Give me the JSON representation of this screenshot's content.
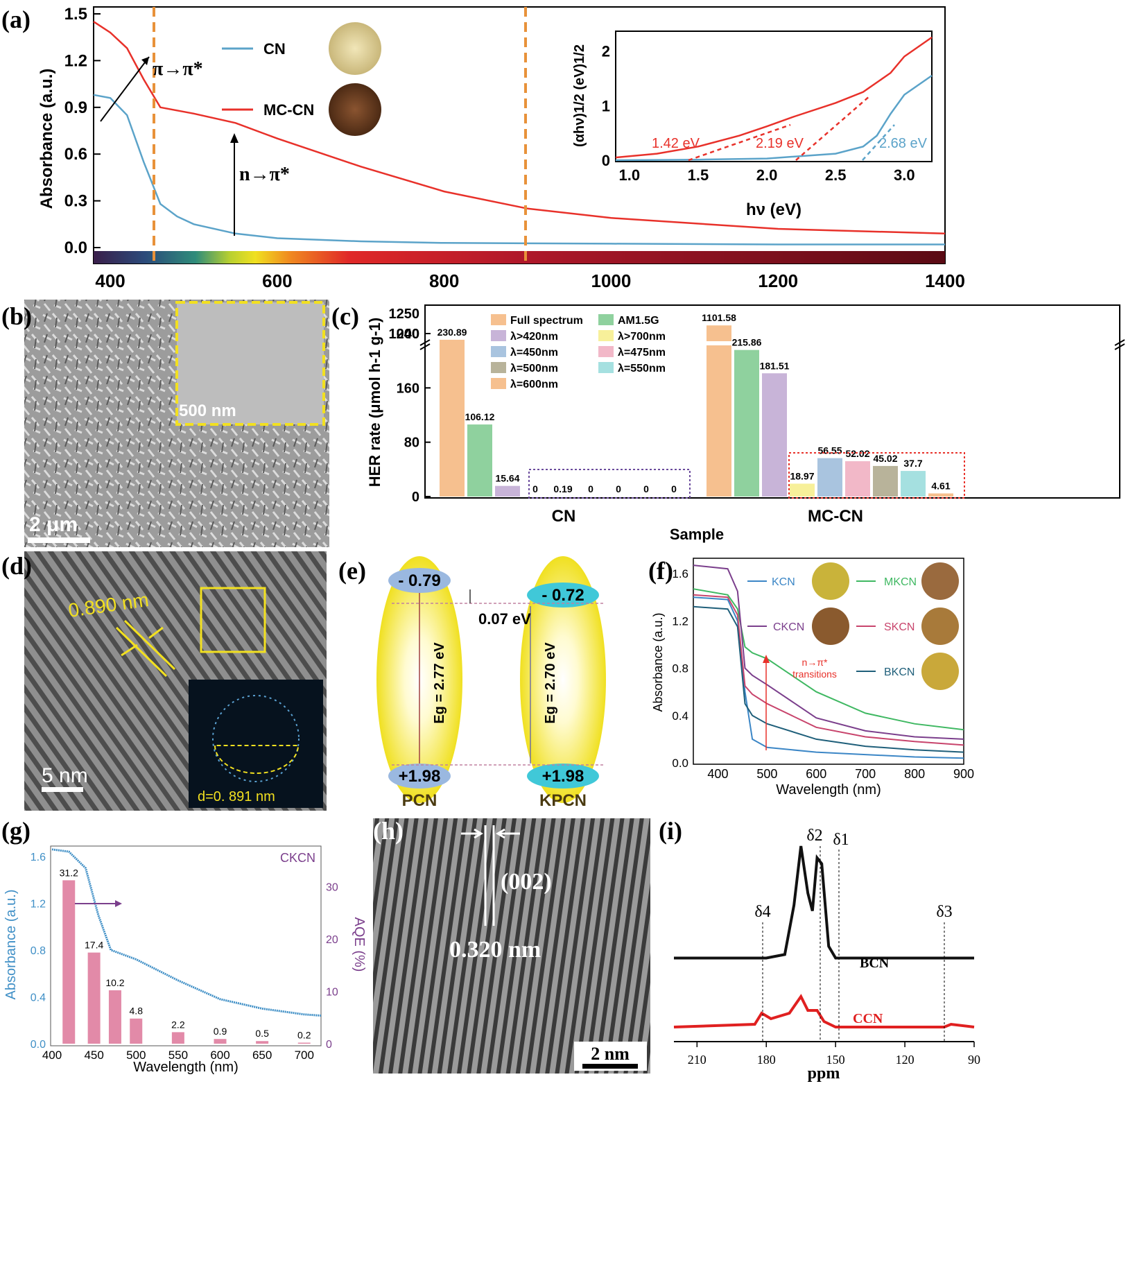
{
  "colors": {
    "cn": "#5ba3c9",
    "mccn": "#e8312a",
    "orange_dash": "#e8923a",
    "ckcn": "#7b3f8c",
    "kcn": "#3b86c6",
    "mkcn": "#3fb862",
    "skcn": "#c8446c",
    "bkcn": "#1f5f7a",
    "aqe_line": "#3f8fc6",
    "bcn": "#111111",
    "ccn": "#e02020"
  },
  "panels": {
    "a": "(a)",
    "b": "(b)",
    "c": "(c)",
    "d": "(d)",
    "e": "(e)",
    "f": "(f)",
    "g": "(g)",
    "h": "(h)",
    "i": "(i)"
  },
  "panel_a": {
    "ylabel": "Absorbance (a.u.)",
    "yticks": [
      "0.0",
      "0.3",
      "0.6",
      "0.9",
      "1.2",
      "1.5"
    ],
    "xticks": [
      "400",
      "600",
      "800",
      "1000",
      "1200",
      "1400"
    ],
    "legend_cn": "CN",
    "legend_mccn": "MC-CN",
    "ann_pi": "π→π*",
    "ann_n": "n→π*",
    "inset": {
      "ylabel": "(αhν)1/2 (eV)1/2",
      "xlabel": "hν (eV)",
      "xticks": [
        "1.0",
        "1.5",
        "2.0",
        "2.5",
        "3.0"
      ],
      "yticks": [
        "0",
        "1",
        "2"
      ],
      "e1": "1.42 eV",
      "e2": "2.19 eV",
      "e3": "2.68 eV"
    }
  },
  "panel_b": {
    "scale_main": "2 μm",
    "scale_inset": "500 nm"
  },
  "panel_c": {
    "ylabel": "HER rate (μmol h-1 g-1)",
    "xlabel": "Sample",
    "yticks_low": [
      "0",
      "80",
      "160",
      "240"
    ],
    "yticks_high": [
      "1000",
      "1250"
    ],
    "groups": [
      "CN",
      "MC-CN"
    ],
    "legend": [
      "Full spectrum",
      "AM1.5G",
      "λ>420nm",
      "λ>700nm",
      "λ=450nm",
      "λ=475nm",
      "λ=500nm",
      "λ=550nm",
      "λ=600nm"
    ],
    "legend_colors": [
      "#f6c08f",
      "#8fd19e",
      "#c8b4d8",
      "#f7f09a",
      "#a9c4df",
      "#f2b8c8",
      "#b8b39a",
      "#a5e0e0",
      "#f6c08f"
    ],
    "cn_values": [
      230.89,
      106.12,
      15.64,
      0,
      0.19,
      0,
      0,
      0,
      0
    ],
    "cn_labels": [
      "230.89",
      "106.12",
      "15.64",
      "0",
      "0.19",
      "0",
      "0",
      "0",
      "0"
    ],
    "mccn_values": [
      1101.58,
      215.86,
      181.51,
      18.97,
      56.55,
      52.02,
      45.02,
      37.7,
      4.61
    ],
    "mccn_labels": [
      "1101.58",
      "215.86",
      "181.51",
      "18.97",
      "56.55",
      "52.02",
      "45.02",
      "37.7",
      "4.61"
    ]
  },
  "panel_d": {
    "fringe": "0.890 nm",
    "scale": "5 nm",
    "fft": "d=0. 891 nm"
  },
  "panel_e": {
    "pcn_cb": "- 0.79",
    "pcn_vb": "+1.98",
    "pcn_eg": "Eg = 2.77 eV",
    "pcn_name": "PCN",
    "kpcn_cb": "- 0.72",
    "kpcn_vb": "+1.98",
    "kpcn_eg": "Eg = 2.70 eV",
    "kpcn_name": "KPCN",
    "delta": "0.07 eV"
  },
  "panel_f": {
    "ylabel": "Absorbance (a.u.)",
    "xlabel": "Wavelength (nm)",
    "yticks": [
      "0.0",
      "0.4",
      "0.8",
      "1.2",
      "1.6"
    ],
    "xticks": [
      "400",
      "500",
      "600",
      "700",
      "800",
      "900"
    ],
    "legend": [
      "KCN",
      "MKCN",
      "CKCN",
      "SKCN",
      "BKCN"
    ],
    "ann_1": "n→π*",
    "ann_2": "transitions"
  },
  "panel_g": {
    "ylabel_left": "Absorbance (a.u.)",
    "ylabel_right": "AQE (%)",
    "xlabel": "Wavelength (nm)",
    "series": "CKCN",
    "yticks_left": [
      "0.0",
      "0.4",
      "0.8",
      "1.2",
      "1.6"
    ],
    "yticks_right": [
      "0",
      "10",
      "20",
      "30"
    ],
    "xticks": [
      "400",
      "450",
      "500",
      "550",
      "600",
      "650",
      "700"
    ],
    "bar_x": [
      420,
      450,
      475,
      500,
      550,
      600,
      650,
      700
    ],
    "bar_values": [
      31.2,
      17.4,
      10.2,
      4.8,
      2.2,
      0.9,
      0.5,
      0.2
    ],
    "bar_labels": [
      "31.2",
      "17.4",
      "10.2",
      "4.8",
      "2.2",
      "0.9",
      "0.5",
      "0.2"
    ]
  },
  "panel_h": {
    "plane": "(002)",
    "spacing": "0.320 nm",
    "scale": "2 nm"
  },
  "panel_i": {
    "xlabel": "ppm",
    "xticks": [
      "210",
      "180",
      "150",
      "120",
      "90"
    ],
    "d1": "δ1",
    "d2": "δ2",
    "d3": "δ3",
    "d4": "δ4",
    "bcn": "BCN",
    "ccn": "CCN"
  },
  "chart_data": [
    {
      "type": "line",
      "xlabel": "",
      "ylabel": "Absorbance (a.u.)",
      "xlim": [
        380,
        1400
      ],
      "ylim": [
        -0.05,
        1.5
      ],
      "series": [
        {
          "name": "CN",
          "x": [
            380,
            400,
            420,
            440,
            460,
            480,
            500,
            550,
            600,
            700,
            800,
            1000,
            1200,
            1400
          ],
          "y": [
            0.98,
            0.96,
            0.85,
            0.55,
            0.28,
            0.2,
            0.15,
            0.09,
            0.06,
            0.04,
            0.03,
            0.025,
            0.02,
            0.02
          ]
        },
        {
          "name": "MC-CN",
          "x": [
            380,
            400,
            420,
            440,
            460,
            480,
            500,
            550,
            600,
            700,
            800,
            900,
            1000,
            1200,
            1400
          ],
          "y": [
            1.45,
            1.38,
            1.28,
            1.08,
            0.9,
            0.88,
            0.86,
            0.8,
            0.7,
            0.52,
            0.36,
            0.25,
            0.19,
            0.12,
            0.09
          ]
        }
      ]
    },
    {
      "type": "line",
      "xlabel": "hν (eV)",
      "ylabel": "(αhν)1/2 (eV)1/2",
      "xlim": [
        0.9,
        3.2
      ],
      "ylim": [
        0,
        2.3
      ],
      "series": [
        {
          "name": "CN",
          "x": [
            0.9,
            1.5,
            2.0,
            2.5,
            2.7,
            2.8,
            2.9,
            3.0,
            3.2
          ],
          "y": [
            0.0,
            0.01,
            0.03,
            0.12,
            0.25,
            0.45,
            0.85,
            1.2,
            1.55
          ]
        },
        {
          "name": "MC-CN",
          "x": [
            0.9,
            1.2,
            1.5,
            1.8,
            2.0,
            2.2,
            2.5,
            2.7,
            2.9,
            3.0,
            3.2
          ],
          "y": [
            0.05,
            0.12,
            0.25,
            0.45,
            0.62,
            0.8,
            1.05,
            1.25,
            1.6,
            1.9,
            2.25
          ]
        }
      ]
    },
    {
      "type": "bar",
      "ylabel": "HER rate (μmol h-1 g-1)",
      "xlabel": "Sample",
      "categories": [
        "CN",
        "MC-CN"
      ],
      "series": [
        {
          "name": "Full spectrum",
          "values": [
            230.89,
            1101.58
          ]
        },
        {
          "name": "AM1.5G",
          "values": [
            106.12,
            215.86
          ]
        },
        {
          "name": "λ>420nm",
          "values": [
            15.64,
            181.51
          ]
        },
        {
          "name": "λ>700nm",
          "values": [
            0,
            18.97
          ]
        },
        {
          "name": "λ=450nm",
          "values": [
            0.19,
            56.55
          ]
        },
        {
          "name": "λ=475nm",
          "values": [
            0,
            52.02
          ]
        },
        {
          "name": "λ=500nm",
          "values": [
            0,
            45.02
          ]
        },
        {
          "name": "λ=550nm",
          "values": [
            0,
            37.7
          ]
        },
        {
          "name": "λ=600nm",
          "values": [
            0,
            4.61
          ]
        }
      ]
    },
    {
      "type": "line",
      "xlabel": "Wavelength (nm)",
      "ylabel": "Absorbance (a.u.)",
      "xlim": [
        350,
        900
      ],
      "ylim": [
        0,
        1.7
      ],
      "series": [
        {
          "name": "KCN",
          "x": [
            350,
            420,
            440,
            455,
            470,
            500,
            600,
            700,
            800,
            900
          ],
          "y": [
            1.4,
            1.38,
            1.2,
            0.6,
            0.2,
            0.13,
            0.09,
            0.07,
            0.05,
            0.04
          ]
        },
        {
          "name": "MKCN",
          "x": [
            350,
            420,
            440,
            455,
            470,
            500,
            600,
            700,
            800,
            900
          ],
          "y": [
            1.47,
            1.42,
            1.3,
            0.98,
            0.93,
            0.88,
            0.6,
            0.42,
            0.33,
            0.28
          ]
        },
        {
          "name": "CKCN",
          "x": [
            350,
            420,
            440,
            455,
            470,
            500,
            600,
            700,
            800,
            900
          ],
          "y": [
            1.67,
            1.64,
            1.45,
            0.8,
            0.74,
            0.66,
            0.38,
            0.27,
            0.22,
            0.2
          ]
        },
        {
          "name": "SKCN",
          "x": [
            350,
            420,
            440,
            455,
            470,
            500,
            600,
            700,
            800,
            900
          ],
          "y": [
            1.42,
            1.4,
            1.25,
            0.65,
            0.58,
            0.5,
            0.3,
            0.22,
            0.18,
            0.15
          ]
        },
        {
          "name": "BKCN",
          "x": [
            350,
            420,
            440,
            455,
            470,
            500,
            600,
            700,
            800,
            900
          ],
          "y": [
            1.32,
            1.3,
            1.15,
            0.5,
            0.4,
            0.33,
            0.2,
            0.14,
            0.11,
            0.09
          ]
        }
      ]
    },
    {
      "type": "bar",
      "xlabel": "Wavelength (nm)",
      "ylabel": "AQE (%)",
      "categories": [
        "420",
        "450",
        "475",
        "500",
        "550",
        "600",
        "650",
        "700"
      ],
      "series": [
        {
          "name": "",
          "values": [
            31.2,
            17.4,
            10.2,
            4.8,
            2.2,
            0.9,
            0.5,
            0.2
          ]
        }
      ],
      "line": {
        "name": "CKCN",
        "x": [
          400,
          420,
          440,
          455,
          470,
          500,
          550,
          600,
          650,
          700,
          720
        ],
        "y": [
          1.66,
          1.64,
          1.5,
          1.1,
          0.8,
          0.72,
          0.54,
          0.38,
          0.3,
          0.25,
          0.24
        ]
      }
    },
    {
      "type": "line",
      "xlabel": "ppm",
      "xlim": [
        220,
        90
      ],
      "series": [
        {
          "name": "BCN",
          "x": [
            220,
            180,
            172,
            168,
            165,
            162,
            160,
            158,
            156,
            153,
            150,
            120,
            90
          ],
          "y": [
            0.05,
            0.05,
            0.08,
            0.5,
            1.0,
            0.6,
            0.45,
            0.9,
            0.85,
            0.15,
            0.05,
            0.05,
            0.05
          ]
        },
        {
          "name": "CCN",
          "x": [
            220,
            185,
            182,
            178,
            170,
            165,
            162,
            158,
            155,
            150,
            120,
            103,
            100,
            90
          ],
          "y": [
            0.05,
            0.1,
            0.3,
            0.2,
            0.3,
            0.6,
            0.35,
            0.35,
            0.15,
            0.05,
            0.05,
            0.05,
            0.1,
            0.05
          ]
        }
      ]
    }
  ]
}
